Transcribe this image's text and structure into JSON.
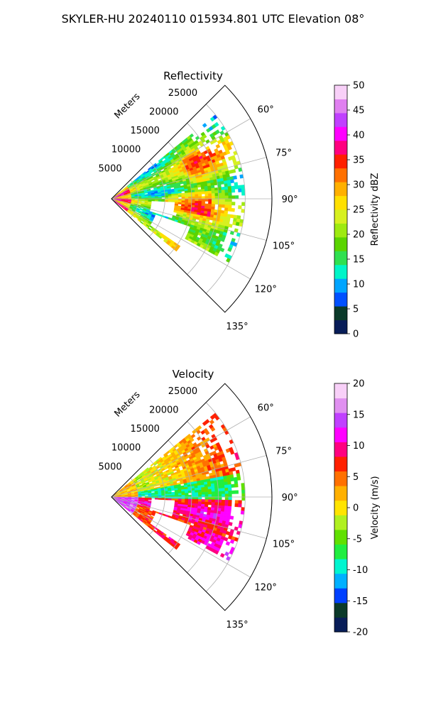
{
  "figure": {
    "suptitle": "SKYLER-HU  20240110  015934.801 UTC Elevation 08°"
  },
  "chart_data": [
    {
      "type": "polar-sector",
      "title": "Reflectivity",
      "range_label": "Meters",
      "r_ticks": [
        5000,
        10000,
        15000,
        20000,
        25000
      ],
      "r_tick_labels": [
        "5000",
        "10000",
        "15000",
        "20000",
        "25000"
      ],
      "r_max": 30000,
      "theta_ticks": [
        60,
        75,
        90,
        105,
        120,
        135
      ],
      "theta_tick_labels": [
        "60°",
        "75°",
        "90°",
        "105°",
        "120°",
        "135°"
      ],
      "theta_range": [
        45,
        135
      ],
      "data_sector_azimuth": [
        51,
        129
      ],
      "data_max_range_m": 25000,
      "colorbar": {
        "label": "Reflectivity dBZ",
        "min": 0,
        "max": 50,
        "ticks": [
          0,
          5,
          10,
          15,
          20,
          25,
          30,
          35,
          40,
          45,
          50
        ],
        "colors": [
          "#081d58",
          "#0b3a2a",
          "#0050ff",
          "#00a5ff",
          "#00f5c8",
          "#30e050",
          "#5ad400",
          "#9eea10",
          "#d7f020",
          "#ffe000",
          "#ffb000",
          "#ff7000",
          "#ff2000",
          "#ff0080",
          "#ff00ff",
          "#c040ff",
          "#e080f0",
          "#f8d0f8"
        ]
      },
      "field_summary": "Mostly 18-28 dBZ widespread echo; strongest 30-40 dBZ near radar and in bands at 75-105 deg"
    },
    {
      "type": "polar-sector",
      "title": "Velocity",
      "range_label": "Meters",
      "r_ticks": [
        5000,
        10000,
        15000,
        20000,
        25000
      ],
      "r_tick_labels": [
        "5000",
        "10000",
        "15000",
        "20000",
        "25000"
      ],
      "r_max": 30000,
      "theta_ticks": [
        60,
        75,
        90,
        105,
        120,
        135
      ],
      "theta_tick_labels": [
        "60°",
        "75°",
        "90°",
        "105°",
        "120°",
        "135°"
      ],
      "theta_range": [
        45,
        135
      ],
      "data_sector_azimuth": [
        51,
        129
      ],
      "data_max_range_m": 25000,
      "colorbar": {
        "label": "Velocity (m/s)",
        "min": -20,
        "max": 20,
        "ticks": [
          -20,
          -15,
          -10,
          -5,
          0,
          5,
          10,
          15,
          20
        ],
        "colors": [
          "#081d58",
          "#0b3a2a",
          "#0040ff",
          "#00b0ff",
          "#00f5d0",
          "#20ee40",
          "#60e000",
          "#b0f020",
          "#ffe400",
          "#ffb000",
          "#ff7000",
          "#ff2000",
          "#ff0080",
          "#ff00ff",
          "#c040ff",
          "#e090f0",
          "#f8d0f8"
        ]
      },
      "field_summary": "Outbound (red/magenta) band along 95-115 deg, inbound (green/cyan) band near 90 deg, positive 10+ m/s at far range near 60 deg"
    }
  ]
}
